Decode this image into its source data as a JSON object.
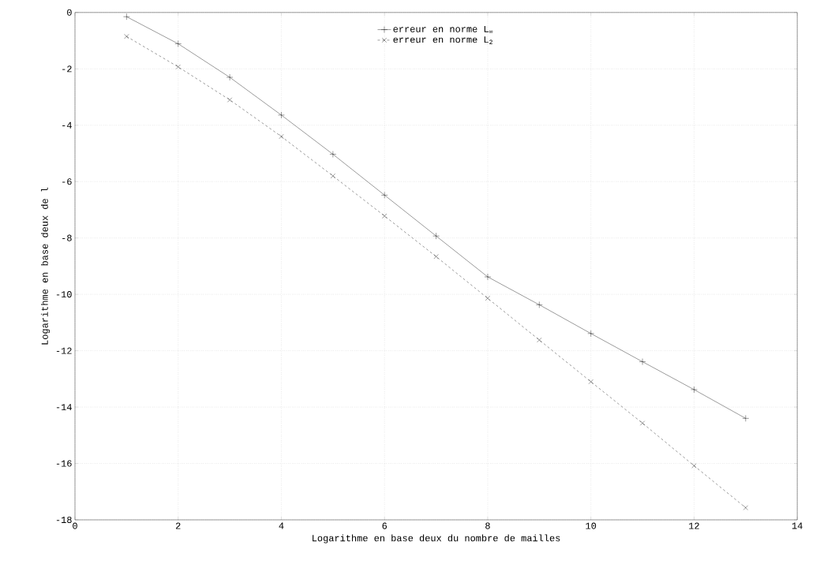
{
  "chart_data": {
    "type": "line",
    "xlabel": "Logarithme en base deux du nombre de mailles",
    "ylabel": "Logarithme en base deux de l",
    "x": [
      1,
      2,
      3,
      4,
      5,
      6,
      7,
      8,
      9,
      10,
      11,
      12,
      13
    ],
    "series": [
      {
        "name": "erreur en norme L$_{∞}$",
        "color": "#000000",
        "marker": "plus",
        "line_style": "solid",
        "values": [
          -0.15,
          -1.11,
          -2.3,
          -3.64,
          -5.03,
          -6.48,
          -7.93,
          -9.38,
          -10.37,
          -11.39,
          -12.39,
          -13.38,
          -14.4
        ]
      },
      {
        "name": "erreur en norme L$_{2}$",
        "color": "#000000",
        "marker": "cross",
        "line_style": "dashed",
        "values": [
          -0.85,
          -1.93,
          -3.1,
          -4.4,
          -5.8,
          -7.22,
          -8.66,
          -10.14,
          -11.62,
          -13.1,
          -14.57,
          -16.08,
          -17.57
        ]
      }
    ],
    "xlim": [
      0,
      14
    ],
    "xticks": [
      0,
      2,
      4,
      6,
      8,
      10,
      12,
      14
    ],
    "ylim": [
      -18,
      0
    ],
    "yticks": [
      -18,
      -16,
      -14,
      -12,
      -10,
      -8,
      -6,
      -4,
      -2,
      0
    ],
    "grid": true,
    "legend": "top"
  }
}
